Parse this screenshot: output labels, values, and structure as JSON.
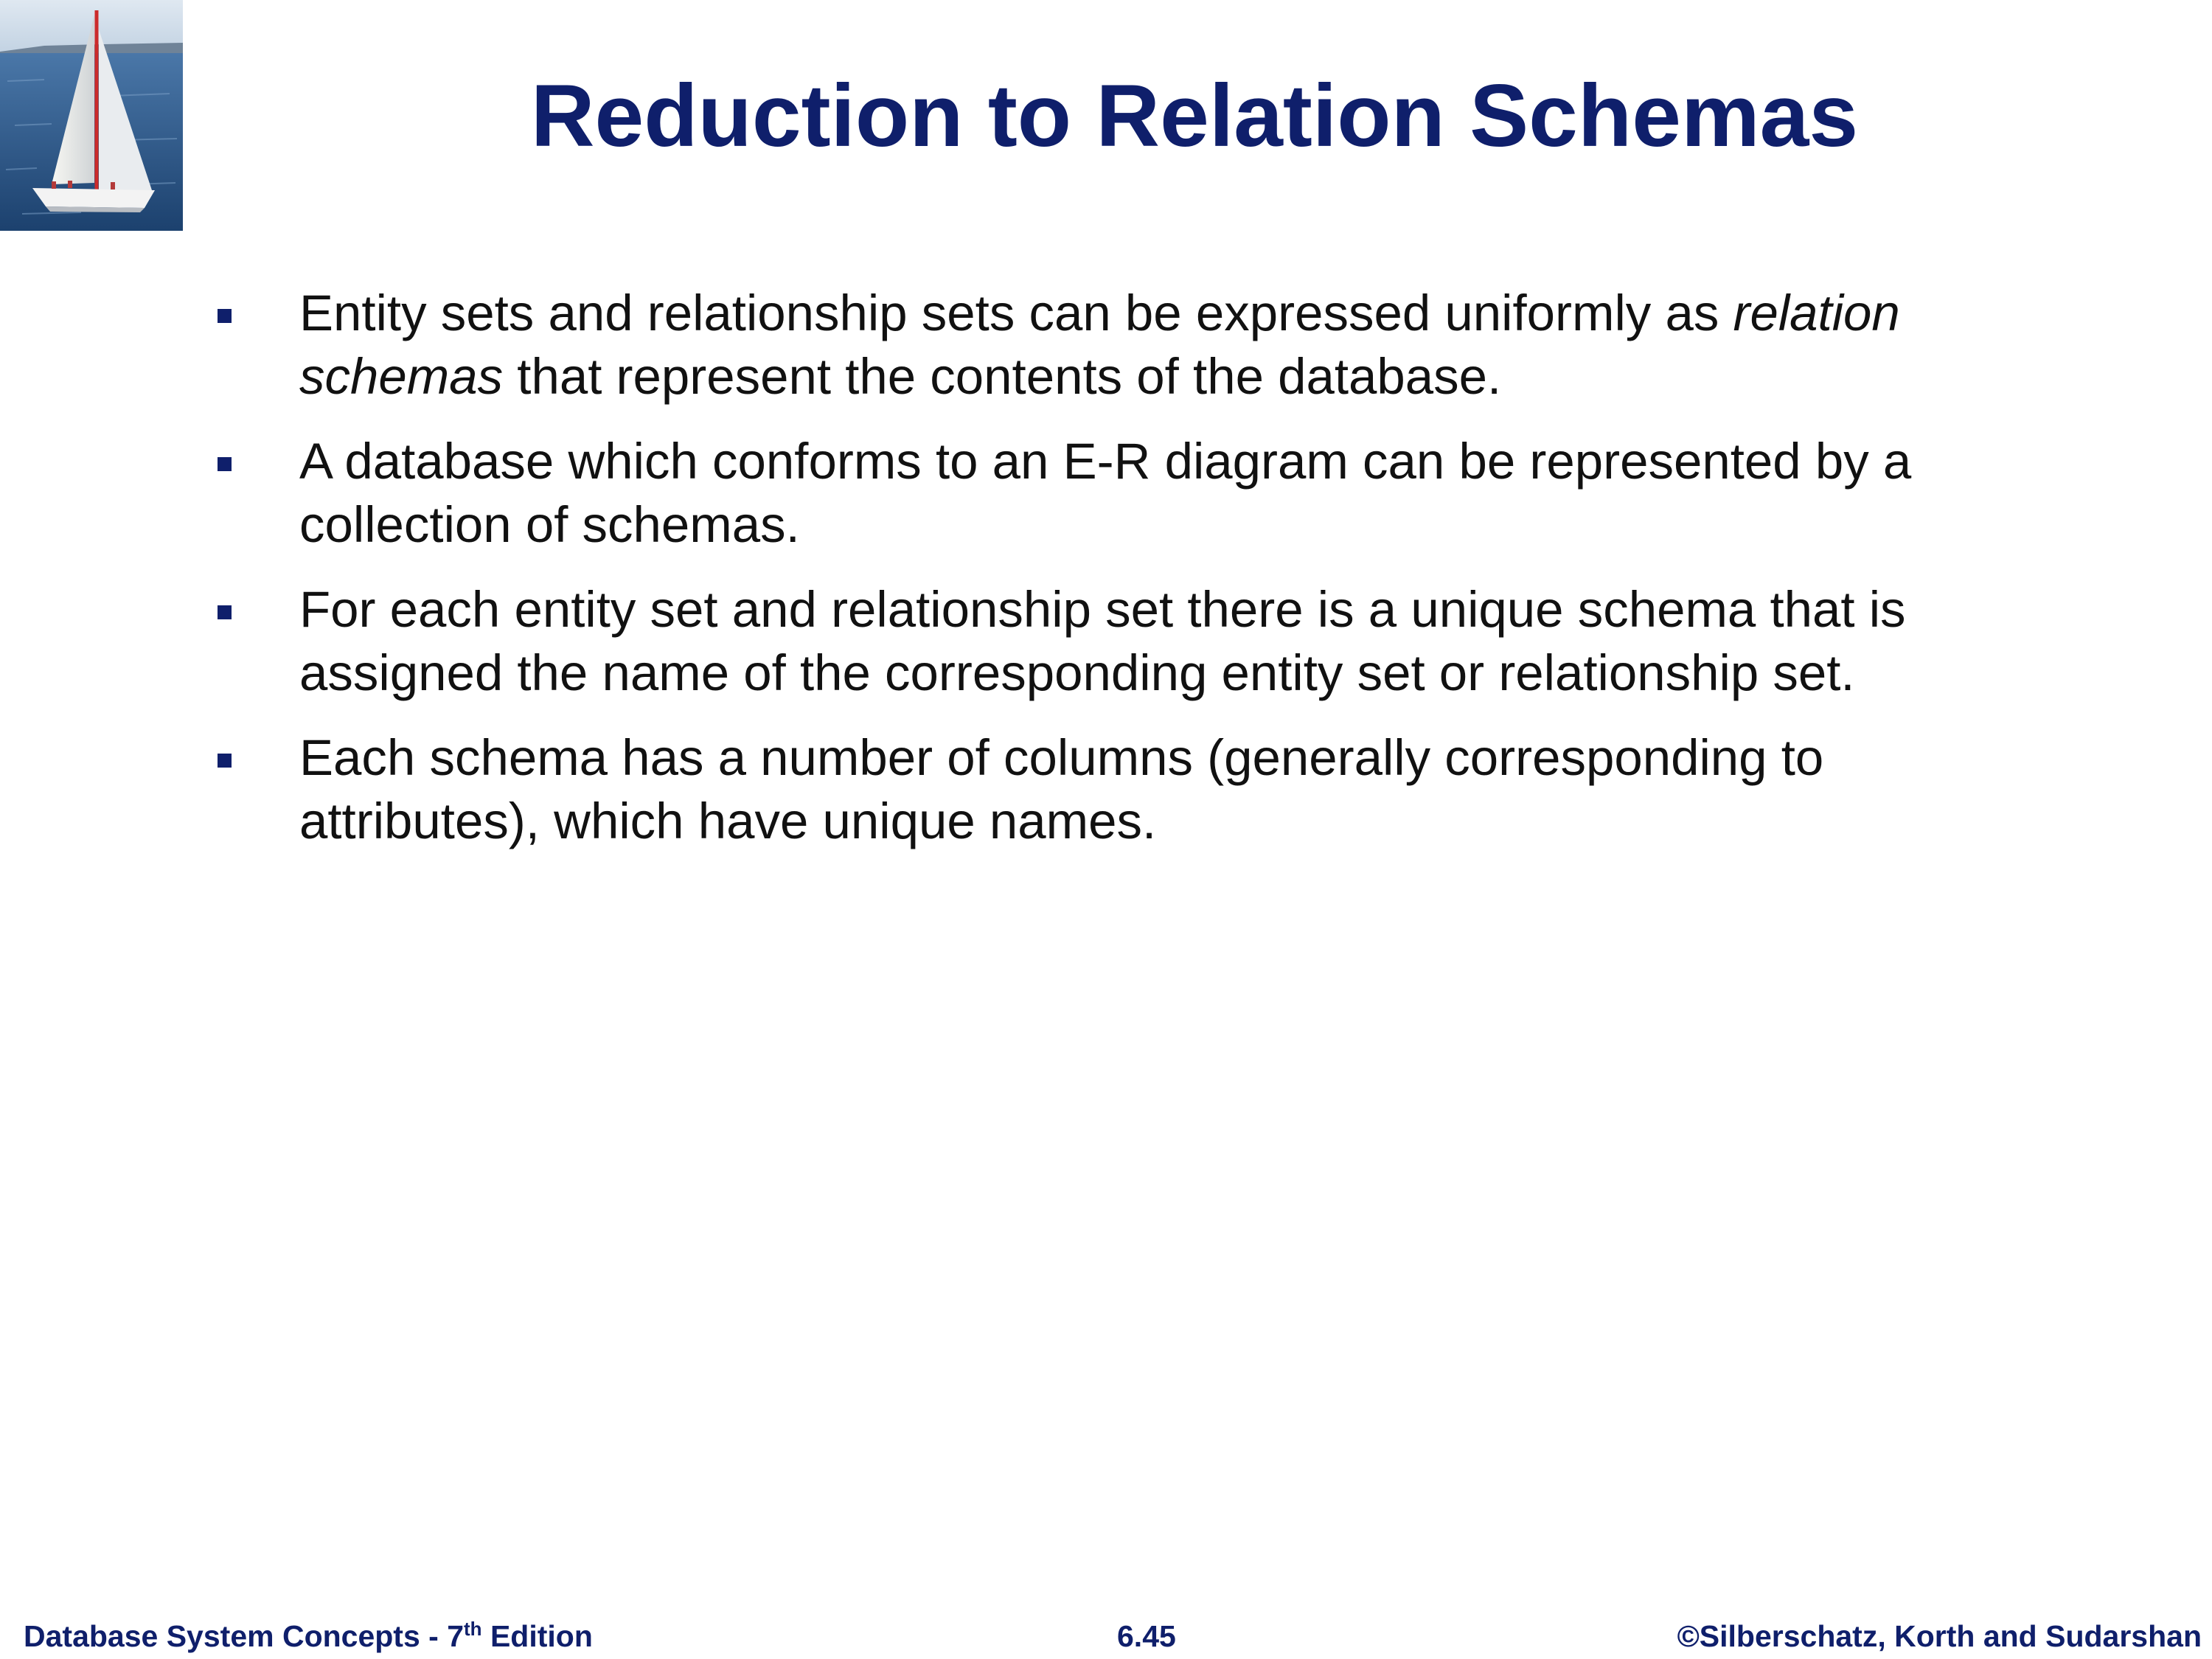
{
  "slide": {
    "title": "Reduction to Relation Schemas",
    "bullets": [
      {
        "parts": [
          {
            "text": "Entity sets and relationship sets can be expressed uniformly as ",
            "italic": false
          },
          {
            "text": "relation schemas",
            "italic": true
          },
          {
            "text": " that represent the contents of the database.",
            "italic": false
          }
        ]
      },
      {
        "parts": [
          {
            "text": "A database which conforms to an E-R diagram can be represented by a collection of schemas.",
            "italic": false
          }
        ]
      },
      {
        "parts": [
          {
            "text": "For each entity set and relationship set there is a unique schema that is assigned the name of the corresponding entity set or relationship set.",
            "italic": false
          }
        ]
      },
      {
        "parts": [
          {
            "text": "Each schema has a number of columns (generally corresponding to attributes), which have unique names.",
            "italic": false
          }
        ]
      }
    ]
  },
  "footer": {
    "left_prefix": "Database System Concepts - 7",
    "left_sup": "th",
    "left_suffix": " Edition",
    "center": "6.45",
    "right": "©Silberschatz, Korth and Sudarshan"
  },
  "colors": {
    "title": "#0f1f6b",
    "bullet": "#0f1f6b",
    "footer": "#0f1f6b",
    "body_text": "#111111"
  },
  "icons": {
    "logo": "sailboat-image",
    "bullet": "square-bullet-icon"
  }
}
